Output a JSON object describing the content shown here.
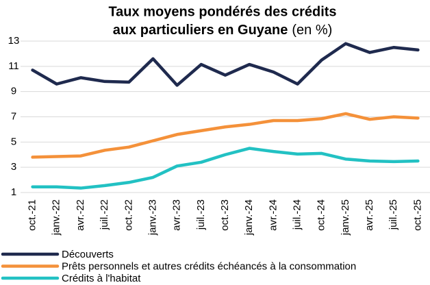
{
  "chart_data": {
    "type": "line",
    "title": [
      "Taux moyens pondérés des crédits",
      "aux particuliers en Guyane"
    ],
    "title_unit": "(en %)",
    "categories": [
      "oct.-21",
      "janv.-22",
      "avr.-22",
      "juil.-22",
      "oct.-22",
      "janv.-23",
      "avr.-23",
      "juil.-23",
      "oct.-23",
      "janv.-24",
      "avr.-24",
      "juil.-24",
      "oct.-24",
      "janv.-25",
      "avr.-25",
      "juil.-25",
      "oct.-25"
    ],
    "series": [
      {
        "name": "Découverts",
        "color": "#1f2a4e",
        "values": [
          10.7,
          9.6,
          10.1,
          9.8,
          9.75,
          11.6,
          9.5,
          11.15,
          10.3,
          11.15,
          10.55,
          9.6,
          11.5,
          12.8,
          12.1,
          12.5,
          12.3
        ]
      },
      {
        "name": "Prêts personnels et autres crédits échéancés à la consommation",
        "color": "#f4913a",
        "values": [
          3.8,
          3.85,
          3.9,
          4.35,
          4.6,
          5.1,
          5.6,
          5.9,
          6.2,
          6.4,
          6.7,
          6.7,
          6.85,
          7.25,
          6.8,
          7.0,
          6.9
        ]
      },
      {
        "name": "Crédits à l'habitat",
        "color": "#22c1c3",
        "values": [
          1.45,
          1.45,
          1.35,
          1.55,
          1.8,
          2.2,
          3.1,
          3.4,
          4.0,
          4.5,
          4.25,
          4.05,
          4.1,
          3.65,
          3.5,
          3.45,
          3.5
        ]
      }
    ],
    "ylim": [
      1,
      13
    ],
    "yticks": [
      1,
      3,
      5,
      7,
      9,
      11,
      13
    ],
    "grid": true
  }
}
